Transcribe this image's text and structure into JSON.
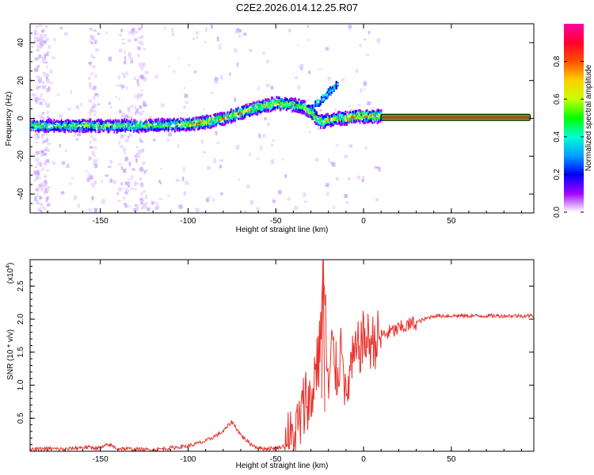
{
  "title": "C2E2.2026.014.12.25.R07",
  "colors": {
    "background": "#ffffff",
    "axis": "#000000",
    "snr_line": "#e8302a",
    "reference_line": "#ff2030",
    "colorbar": [
      "#ffffff",
      "#a000ff",
      "#0000ff",
      "#00a0ff",
      "#00ffd0",
      "#00ff00",
      "#c8ff00",
      "#ffd000",
      "#ff5000",
      "#ff0030",
      "#ff00a0"
    ]
  },
  "chart_data": [
    {
      "type": "heatmap",
      "title": "C2E2.2026.014.12.25.R07",
      "xlabel": "Height of straight line (km)",
      "ylabel": "Frequency (Hz)",
      "xlim": [
        -190,
        97
      ],
      "ylim": [
        -50,
        50
      ],
      "xticks": [
        -150,
        -100,
        -50,
        0,
        50
      ],
      "yticks": [
        -40,
        -20,
        0,
        20,
        40
      ],
      "xtick_labels": [
        "-150",
        "-100",
        "-50",
        "0",
        "50"
      ],
      "ytick_labels": [
        "-40",
        "-20",
        "0",
        "20",
        "40"
      ],
      "colorbar": {
        "label": "Normalized spectral amplitude",
        "range": [
          0,
          1
        ],
        "ticks": [
          0.0,
          0.2,
          0.4,
          0.6,
          0.8
        ],
        "tick_labels": [
          "0.0",
          "0.2",
          "0.4",
          "0.6",
          "0.8"
        ]
      },
      "ridge": {
        "x": [
          -190,
          -170,
          -150,
          -130,
          -110,
          -100,
          -90,
          -80,
          -70,
          -60,
          -50,
          -40,
          -35,
          -30,
          -25,
          -20,
          -15,
          -10,
          -5,
          0,
          5,
          10
        ],
        "y": [
          -4,
          -4,
          -4,
          -4,
          -3.5,
          -3,
          -2,
          0,
          3,
          6,
          8,
          7,
          6,
          3,
          -2,
          -1,
          0,
          0,
          1,
          1,
          1,
          1
        ]
      },
      "reference_line": {
        "x_start": 10,
        "x_end": 95,
        "y": 0.5
      }
    },
    {
      "type": "line",
      "xlabel": "Height of straight line (km)",
      "ylabel": "SNR (10 * v/v)",
      "scale_label": "(x10",
      "scale_exponent": "4",
      "scale_suffix": ")",
      "xlim": [
        -190,
        97
      ],
      "ylim": [
        0,
        2.9
      ],
      "xticks": [
        -150,
        -100,
        -50,
        0,
        50
      ],
      "yticks": [
        0.5,
        1.0,
        1.5,
        2.0,
        2.5
      ],
      "xtick_labels": [
        "-150",
        "-100",
        "-50",
        "0",
        "50"
      ],
      "ytick_labels": [
        "0.5",
        "1.0",
        "1.5",
        "2.0",
        "2.5"
      ],
      "series": [
        {
          "name": "SNR",
          "x": [
            -190,
            -180,
            -170,
            -160,
            -150,
            -145,
            -140,
            -130,
            -120,
            -110,
            -100,
            -90,
            -80,
            -75,
            -70,
            -65,
            -60,
            -55,
            -50,
            -45,
            -40,
            -38,
            -35,
            -32,
            -30,
            -28,
            -25,
            -23,
            -20,
            -18,
            -15,
            -12,
            -10,
            -8,
            -5,
            -2,
            0,
            5,
            10,
            15,
            20,
            25,
            30,
            35,
            40,
            50,
            60,
            70,
            80,
            90,
            95
          ],
          "y": [
            0.02,
            0.04,
            0.03,
            0.06,
            0.05,
            0.1,
            0.04,
            0.03,
            0.02,
            0.05,
            0.08,
            0.15,
            0.3,
            0.45,
            0.25,
            0.12,
            0.05,
            0.04,
            0.05,
            0.08,
            0.15,
            0.3,
            0.55,
            0.9,
            0.6,
            1.2,
            1.5,
            2.85,
            0.8,
            1.6,
            1.1,
            1.8,
            0.6,
            1.2,
            1.4,
            1.6,
            1.7,
            1.65,
            1.75,
            1.8,
            1.85,
            1.9,
            1.95,
            2.0,
            2.05,
            2.05,
            2.05,
            2.05,
            2.05,
            2.05,
            2.05
          ]
        }
      ]
    }
  ]
}
